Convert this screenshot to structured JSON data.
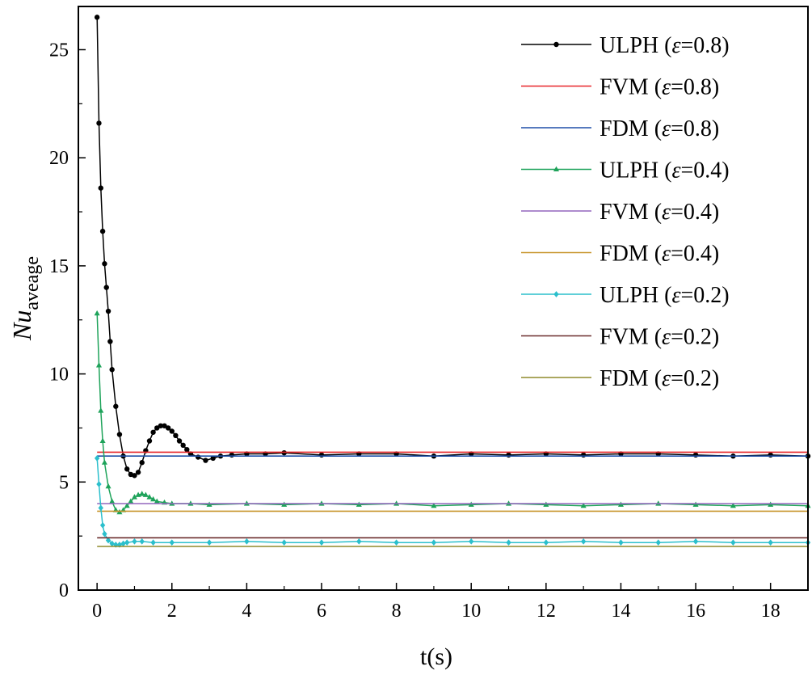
{
  "chart_data": {
    "type": "line",
    "title": "",
    "xlabel": "t(s)",
    "ylabel_main": "Nu",
    "ylabel_sub": "aveage",
    "xlim": [
      -0.5,
      19
    ],
    "ylim": [
      0,
      27
    ],
    "xticks": [
      0,
      2,
      4,
      6,
      8,
      10,
      12,
      14,
      16,
      18
    ],
    "yticks": [
      0,
      5,
      10,
      15,
      20,
      25
    ],
    "grid": false,
    "legend_position": "top-right",
    "series": [
      {
        "name": "ULPH (ε=0.8)",
        "name_prefix": "ULPH (",
        "name_symbol": "ε",
        "name_suffix": "=0.8)",
        "kind": "marker-line",
        "marker": "circle",
        "color": "#000000",
        "x": [
          0,
          0.05,
          0.1,
          0.15,
          0.2,
          0.25,
          0.3,
          0.35,
          0.4,
          0.5,
          0.6,
          0.7,
          0.8,
          0.9,
          1.0,
          1.1,
          1.2,
          1.3,
          1.4,
          1.5,
          1.6,
          1.7,
          1.8,
          1.9,
          2.0,
          2.1,
          2.2,
          2.3,
          2.4,
          2.5,
          2.7,
          2.9,
          3.1,
          3.3,
          3.6,
          4.0,
          4.5,
          5.0,
          6.0,
          7.0,
          8.0,
          9.0,
          10.0,
          11.0,
          12.0,
          13.0,
          14.0,
          15.0,
          16.0,
          17.0,
          18.0,
          19.0
        ],
        "y": [
          26.5,
          21.6,
          18.6,
          16.6,
          15.1,
          14.0,
          12.9,
          11.5,
          10.2,
          8.5,
          7.2,
          6.2,
          5.6,
          5.35,
          5.3,
          5.45,
          5.9,
          6.45,
          6.9,
          7.3,
          7.5,
          7.6,
          7.6,
          7.5,
          7.35,
          7.15,
          6.9,
          6.7,
          6.5,
          6.3,
          6.15,
          6.0,
          6.1,
          6.2,
          6.25,
          6.3,
          6.3,
          6.35,
          6.25,
          6.3,
          6.3,
          6.2,
          6.3,
          6.25,
          6.3,
          6.25,
          6.3,
          6.3,
          6.25,
          6.2,
          6.25,
          6.2
        ]
      },
      {
        "name": "FVM (ε=0.8)",
        "name_prefix": "FVM (",
        "name_symbol": "ε",
        "name_suffix": "=0.8)",
        "kind": "line",
        "color": "#e8262a",
        "x": [
          0,
          19
        ],
        "y": [
          6.38,
          6.38
        ]
      },
      {
        "name": "FDM (ε=0.8)",
        "name_prefix": "FDM (",
        "name_symbol": "ε",
        "name_suffix": "=0.8)",
        "kind": "line",
        "color": "#1f4fa8",
        "x": [
          0,
          19
        ],
        "y": [
          6.2,
          6.2
        ]
      },
      {
        "name": "ULPH (ε=0.4)",
        "name_prefix": "ULPH (",
        "name_symbol": "ε",
        "name_suffix": "=0.4)",
        "kind": "marker-line",
        "marker": "triangle",
        "color": "#1ea35a",
        "x": [
          0,
          0.05,
          0.1,
          0.15,
          0.2,
          0.3,
          0.4,
          0.5,
          0.6,
          0.7,
          0.8,
          0.9,
          1.0,
          1.1,
          1.2,
          1.3,
          1.4,
          1.5,
          1.6,
          1.8,
          2.0,
          2.5,
          3.0,
          4.0,
          5.0,
          6.0,
          7.0,
          8.0,
          9.0,
          10.0,
          11.0,
          12.0,
          13.0,
          14.0,
          15.0,
          16.0,
          17.0,
          18.0,
          19.0
        ],
        "y": [
          12.8,
          10.4,
          8.3,
          6.9,
          5.9,
          4.8,
          4.1,
          3.7,
          3.6,
          3.7,
          3.9,
          4.1,
          4.3,
          4.4,
          4.45,
          4.4,
          4.3,
          4.2,
          4.1,
          4.05,
          4.0,
          4.0,
          3.95,
          4.0,
          3.95,
          4.0,
          3.95,
          4.0,
          3.9,
          3.95,
          4.0,
          3.95,
          3.9,
          3.95,
          4.0,
          3.95,
          3.9,
          3.95,
          3.9
        ]
      },
      {
        "name": "FVM (ε=0.4)",
        "name_prefix": "FVM (",
        "name_symbol": "ε",
        "name_suffix": "=0.4)",
        "kind": "line",
        "color": "#9467bd",
        "x": [
          0,
          19
        ],
        "y": [
          4.0,
          4.0
        ]
      },
      {
        "name": "FDM (ε=0.4)",
        "name_prefix": "FDM (",
        "name_symbol": "ε",
        "name_suffix": "=0.4)",
        "kind": "line",
        "color": "#c8962d",
        "x": [
          0,
          19
        ],
        "y": [
          3.65,
          3.65
        ]
      },
      {
        "name": "ULPH (ε=0.2)",
        "name_prefix": "ULPH (",
        "name_symbol": "ε",
        "name_suffix": "=0.2)",
        "kind": "marker-line",
        "marker": "diamond",
        "color": "#2bbfcc",
        "x": [
          0,
          0.05,
          0.1,
          0.15,
          0.2,
          0.3,
          0.4,
          0.5,
          0.6,
          0.7,
          0.8,
          1.0,
          1.2,
          1.5,
          2.0,
          3.0,
          4.0,
          5.0,
          6.0,
          7.0,
          8.0,
          9.0,
          10.0,
          11.0,
          12.0,
          13.0,
          14.0,
          15.0,
          16.0,
          17.0,
          18.0,
          19.0
        ],
        "y": [
          6.1,
          4.9,
          3.8,
          3.0,
          2.6,
          2.3,
          2.15,
          2.1,
          2.1,
          2.15,
          2.2,
          2.25,
          2.25,
          2.2,
          2.2,
          2.2,
          2.25,
          2.2,
          2.2,
          2.25,
          2.2,
          2.2,
          2.25,
          2.2,
          2.2,
          2.25,
          2.2,
          2.2,
          2.25,
          2.2,
          2.2,
          2.2
        ]
      },
      {
        "name": "FVM (ε=0.2)",
        "name_prefix": "FVM (",
        "name_symbol": "ε",
        "name_suffix": "=0.2)",
        "kind": "line",
        "color": "#6b2e2e",
        "x": [
          0,
          19
        ],
        "y": [
          2.42,
          2.42
        ]
      },
      {
        "name": "FDM (ε=0.2)",
        "name_prefix": "FDM (",
        "name_symbol": "ε",
        "name_suffix": "=0.2)",
        "kind": "line",
        "color": "#8f8a2b",
        "x": [
          0,
          19
        ],
        "y": [
          2.02,
          2.02
        ]
      }
    ]
  }
}
